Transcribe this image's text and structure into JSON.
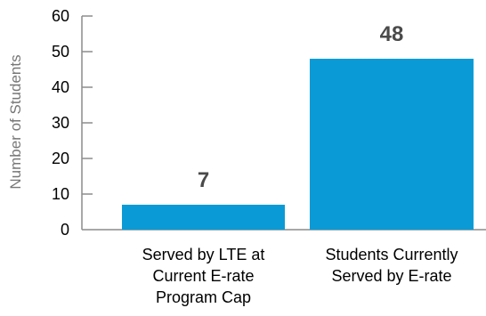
{
  "chart_data": {
    "type": "bar",
    "categories": [
      [
        "Served by LTE at",
        "Current E-rate",
        "Program Cap"
      ],
      [
        "Students Currently",
        "Served by E-rate"
      ]
    ],
    "values": [
      7,
      48
    ],
    "data_labels": [
      "7",
      "48"
    ],
    "ylabel": "Number of Students",
    "ylim": [
      0,
      60
    ],
    "yticks": [
      0,
      10,
      20,
      30,
      40,
      50,
      60
    ],
    "grid": false,
    "bar_color": "#0a9bd6",
    "axis_color": "#8c8c8c"
  }
}
